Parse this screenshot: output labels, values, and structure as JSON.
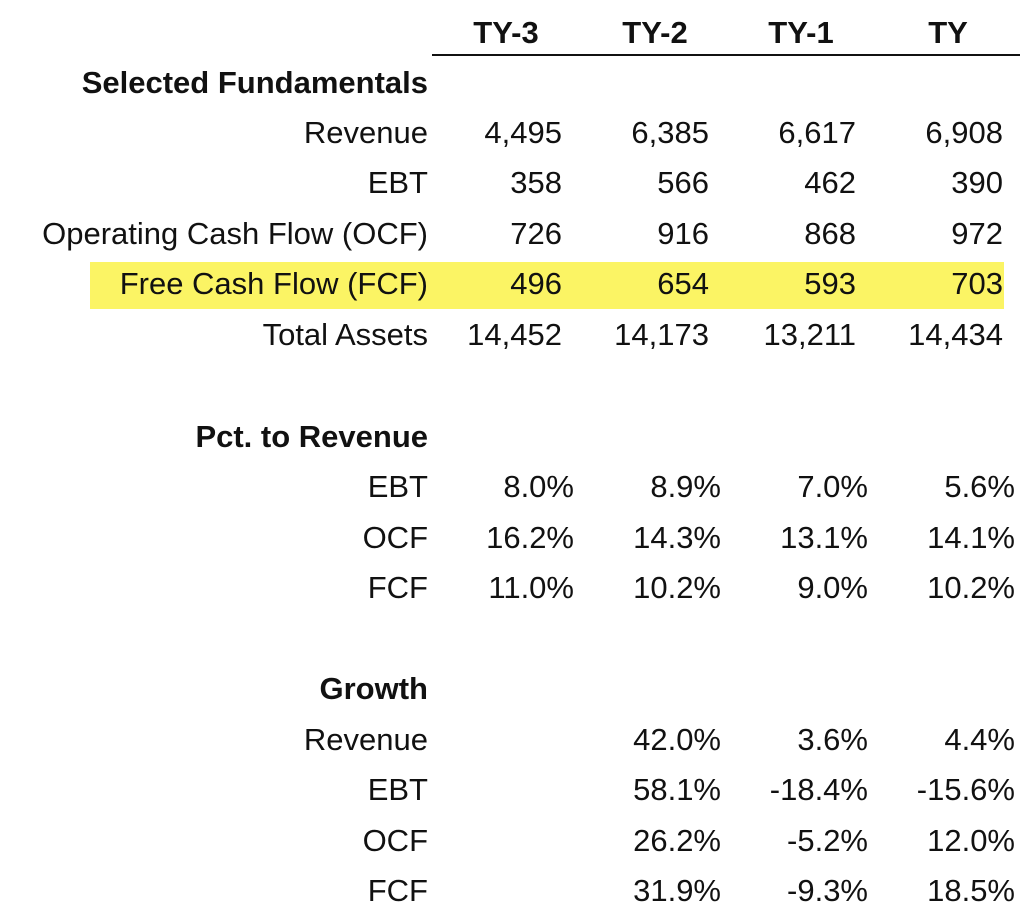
{
  "chart_data": {
    "type": "table",
    "columns": [
      "TY-3",
      "TY-2",
      "TY-1",
      "TY"
    ],
    "sections": [
      {
        "title": "Selected Fundamentals",
        "rows": [
          {
            "label": "Revenue",
            "values": [
              "4,495",
              "6,385",
              "6,617",
              "6,908"
            ],
            "highlight": false
          },
          {
            "label": "EBT",
            "values": [
              "358",
              "566",
              "462",
              "390"
            ],
            "highlight": false
          },
          {
            "label": "Operating Cash Flow (OCF)",
            "values": [
              "726",
              "916",
              "868",
              "972"
            ],
            "highlight": false
          },
          {
            "label": "Free Cash Flow (FCF)",
            "values": [
              "496",
              "654",
              "593",
              "703"
            ],
            "highlight": true
          },
          {
            "label": "Total Assets",
            "values": [
              "14,452",
              "14,173",
              "13,211",
              "14,434"
            ],
            "highlight": false
          }
        ]
      },
      {
        "title": "Pct. to Revenue",
        "rows": [
          {
            "label": "EBT",
            "values": [
              "8.0%",
              "8.9%",
              "7.0%",
              "5.6%"
            ],
            "highlight": false
          },
          {
            "label": "OCF",
            "values": [
              "16.2%",
              "14.3%",
              "13.1%",
              "14.1%"
            ],
            "highlight": false
          },
          {
            "label": "FCF",
            "values": [
              "11.0%",
              "10.2%",
              "9.0%",
              "10.2%"
            ],
            "highlight": false
          }
        ]
      },
      {
        "title": "Growth",
        "rows": [
          {
            "label": "Revenue",
            "values": [
              "",
              "42.0%",
              "3.6%",
              "4.4%"
            ],
            "highlight": false
          },
          {
            "label": "EBT",
            "values": [
              "",
              "58.1%",
              "-18.4%",
              "-15.6%"
            ],
            "highlight": false
          },
          {
            "label": "OCF",
            "values": [
              "",
              "26.2%",
              "-5.2%",
              "12.0%"
            ],
            "highlight": false
          },
          {
            "label": "FCF",
            "values": [
              "",
              "31.9%",
              "-9.3%",
              "18.5%"
            ],
            "highlight": false
          }
        ]
      }
    ],
    "highlight_color": "#fbf464"
  }
}
